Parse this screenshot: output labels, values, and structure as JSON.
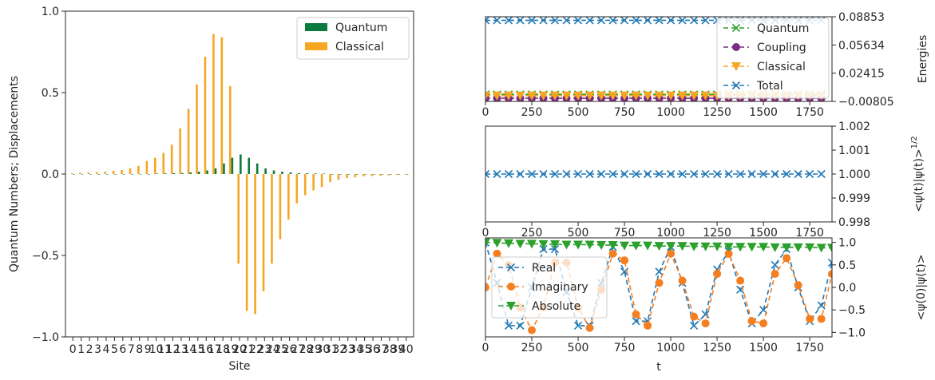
{
  "colors": {
    "quantum": "#0b7a3e",
    "classical": "#f5a623",
    "blue": "#1f77b4",
    "orange": "#f57f20",
    "green": "#2ca02c",
    "purple": "#7b2c83",
    "gold": "#f5a623"
  },
  "chart_data": [
    {
      "type": "bar",
      "xlabel": "Site",
      "ylabel": "Quantum Numbers; Displacements",
      "ylim": [
        -1.0,
        1.0
      ],
      "yticks": [
        -1.0,
        -0.5,
        0.0,
        0.5,
        1.0
      ],
      "ytick_labels": [
        "−1.0",
        "−0.5",
        "0.0",
        "0.5",
        "1.0"
      ],
      "categories": [
        "0",
        "1",
        "2",
        "3",
        "4",
        "5",
        "6",
        "7",
        "8",
        "9",
        "10",
        "11",
        "12",
        "13",
        "14",
        "15",
        "16",
        "17",
        "18",
        "19",
        "20",
        "21",
        "22",
        "23",
        "24",
        "25",
        "26",
        "27",
        "28",
        "29",
        "30",
        "31",
        "32",
        "33",
        "34",
        "35",
        "36",
        "37",
        "38",
        "39",
        "40"
      ],
      "legend": "top-right",
      "series": [
        {
          "name": "Quantum",
          "color_key": "quantum",
          "values": [
            0,
            0,
            0,
            0,
            0,
            0,
            0,
            0,
            0,
            0,
            0.003,
            0.004,
            0.005,
            0.006,
            0.01,
            0.015,
            0.022,
            0.035,
            0.065,
            0.1,
            0.12,
            0.1,
            0.065,
            0.035,
            0.022,
            0.015,
            0.01,
            0.006,
            0.005,
            0.004,
            0.003,
            0,
            0,
            0,
            0,
            0,
            0,
            0,
            0,
            0,
            0
          ]
        },
        {
          "name": "Classical",
          "color_key": "classical",
          "values": [
            0.005,
            0.008,
            0.01,
            0.012,
            0.015,
            0.02,
            0.025,
            0.035,
            0.05,
            0.08,
            0.1,
            0.13,
            0.18,
            0.28,
            0.4,
            0.55,
            0.72,
            0.86,
            0.84,
            0.54,
            -0.55,
            -0.84,
            -0.86,
            -0.72,
            -0.55,
            -0.4,
            -0.28,
            -0.18,
            -0.13,
            -0.1,
            -0.08,
            -0.05,
            -0.035,
            -0.025,
            -0.02,
            -0.015,
            -0.012,
            -0.01,
            -0.008,
            -0.005,
            -0.003
          ]
        }
      ]
    },
    {
      "type": "line",
      "ylabel": "Energies",
      "xlim": [
        0,
        1870
      ],
      "ylim": [
        -0.00805,
        0.08853
      ],
      "xticks": [
        0,
        250,
        500,
        750,
        1000,
        1250,
        1500,
        1750
      ],
      "yticks": [
        -0.00805,
        0.02415,
        0.05634,
        0.08853
      ],
      "ytick_labels": [
        "−0.00805",
        "0.02415",
        "0.05634",
        "0.08853"
      ],
      "legend": "right",
      "x_start": 0,
      "x_step": 62.5,
      "n_points": 30,
      "series": [
        {
          "name": "Quantum",
          "color_key": "green",
          "marker": "x",
          "constant": 0.0
        },
        {
          "name": "Coupling",
          "color_key": "purple",
          "marker": "circle",
          "constant": -0.0045
        },
        {
          "name": "Classical",
          "color_key": "gold",
          "marker": "triangle",
          "constant": -0.0015
        },
        {
          "name": "Total",
          "color_key": "blue",
          "marker": "x",
          "constant": 0.0845
        }
      ]
    },
    {
      "type": "line",
      "ylabel": "<ψ(t)|ψ(t)>",
      "ylabel_exp": "1/2",
      "xlim": [
        0,
        1870
      ],
      "ylim": [
        0.998,
        1.002
      ],
      "xticks": [
        0,
        250,
        500,
        750,
        1000,
        1250,
        1500,
        1750
      ],
      "yticks": [
        0.998,
        0.999,
        1.0,
        1.001,
        1.002
      ],
      "ytick_labels": [
        "0.998",
        "0.999",
        "1.000",
        "1.001",
        "1.002"
      ],
      "x_start": 0,
      "x_step": 62.5,
      "n_points": 30,
      "series": [
        {
          "name": "",
          "color_key": "blue",
          "marker": "x",
          "constant": 1.0
        }
      ]
    },
    {
      "type": "line",
      "xlabel": "t",
      "ylabel": "<ψ(0)|ψ(t)>",
      "xlim": [
        0,
        1870
      ],
      "ylim": [
        -1.1,
        1.1
      ],
      "xticks": [
        0,
        250,
        500,
        750,
        1000,
        1250,
        1500,
        1750
      ],
      "yticks": [
        -1.0,
        -0.5,
        0.0,
        0.5,
        1.0
      ],
      "ytick_labels": [
        "−1.0",
        "−0.5",
        "0.0",
        "0.5",
        "1.0"
      ],
      "legend": "left",
      "series": [
        {
          "name": "Real",
          "color_key": "blue",
          "marker": "x",
          "x": [
            0,
            62.5,
            125,
            187.5,
            250,
            312.5,
            375,
            437.5,
            500,
            562.5,
            625,
            687.5,
            750,
            812.5,
            875,
            937.5,
            1000,
            1062.5,
            1125,
            1187.5,
            1250,
            1312.5,
            1375,
            1437.5,
            1500,
            1562.5,
            1625,
            1687.5,
            1750,
            1812.5,
            1870
          ],
          "values": [
            1.0,
            0.1,
            -0.85,
            -0.85,
            0.0,
            0.85,
            0.85,
            -0.1,
            -0.85,
            -0.85,
            0.1,
            0.9,
            0.35,
            -0.75,
            -0.75,
            0.35,
            0.9,
            0.1,
            -0.85,
            -0.6,
            0.4,
            0.8,
            -0.05,
            -0.8,
            -0.5,
            0.5,
            0.85,
            0.0,
            -0.75,
            -0.4,
            0.55
          ]
        },
        {
          "name": "Imaginary",
          "color_key": "orange",
          "marker": "circle",
          "x": [
            0,
            62.5,
            125,
            187.5,
            250,
            312.5,
            375,
            437.5,
            500,
            562.5,
            625,
            687.5,
            750,
            812.5,
            875,
            937.5,
            1000,
            1062.5,
            1125,
            1187.5,
            1250,
            1312.5,
            1375,
            1437.5,
            1500,
            1562.5,
            1625,
            1687.5,
            1750,
            1812.5,
            1870
          ],
          "values": [
            0.0,
            0.75,
            0.5,
            -0.45,
            -0.95,
            -0.45,
            0.55,
            0.55,
            -0.45,
            -0.9,
            -0.05,
            0.75,
            0.6,
            -0.6,
            -0.85,
            0.1,
            0.75,
            0.15,
            -0.65,
            -0.8,
            0.3,
            0.75,
            0.15,
            -0.75,
            -0.8,
            0.3,
            0.65,
            0.05,
            -0.7,
            -0.7,
            0.3
          ]
        },
        {
          "name": "Absolute",
          "color_key": "green",
          "marker": "triangle",
          "x": [
            0,
            62.5,
            125,
            187.5,
            250,
            312.5,
            375,
            437.5,
            500,
            562.5,
            625,
            687.5,
            750,
            812.5,
            875,
            937.5,
            1000,
            1062.5,
            1125,
            1187.5,
            1250,
            1312.5,
            1375,
            1437.5,
            1500,
            1562.5,
            1625,
            1687.5,
            1750,
            1812.5,
            1870
          ],
          "values": [
            1.0,
            0.99,
            0.98,
            0.97,
            0.97,
            0.96,
            0.96,
            0.95,
            0.95,
            0.95,
            0.94,
            0.94,
            0.93,
            0.93,
            0.93,
            0.92,
            0.92,
            0.92,
            0.91,
            0.91,
            0.91,
            0.9,
            0.9,
            0.9,
            0.9,
            0.89,
            0.89,
            0.89,
            0.89,
            0.88,
            0.88
          ]
        }
      ]
    }
  ]
}
